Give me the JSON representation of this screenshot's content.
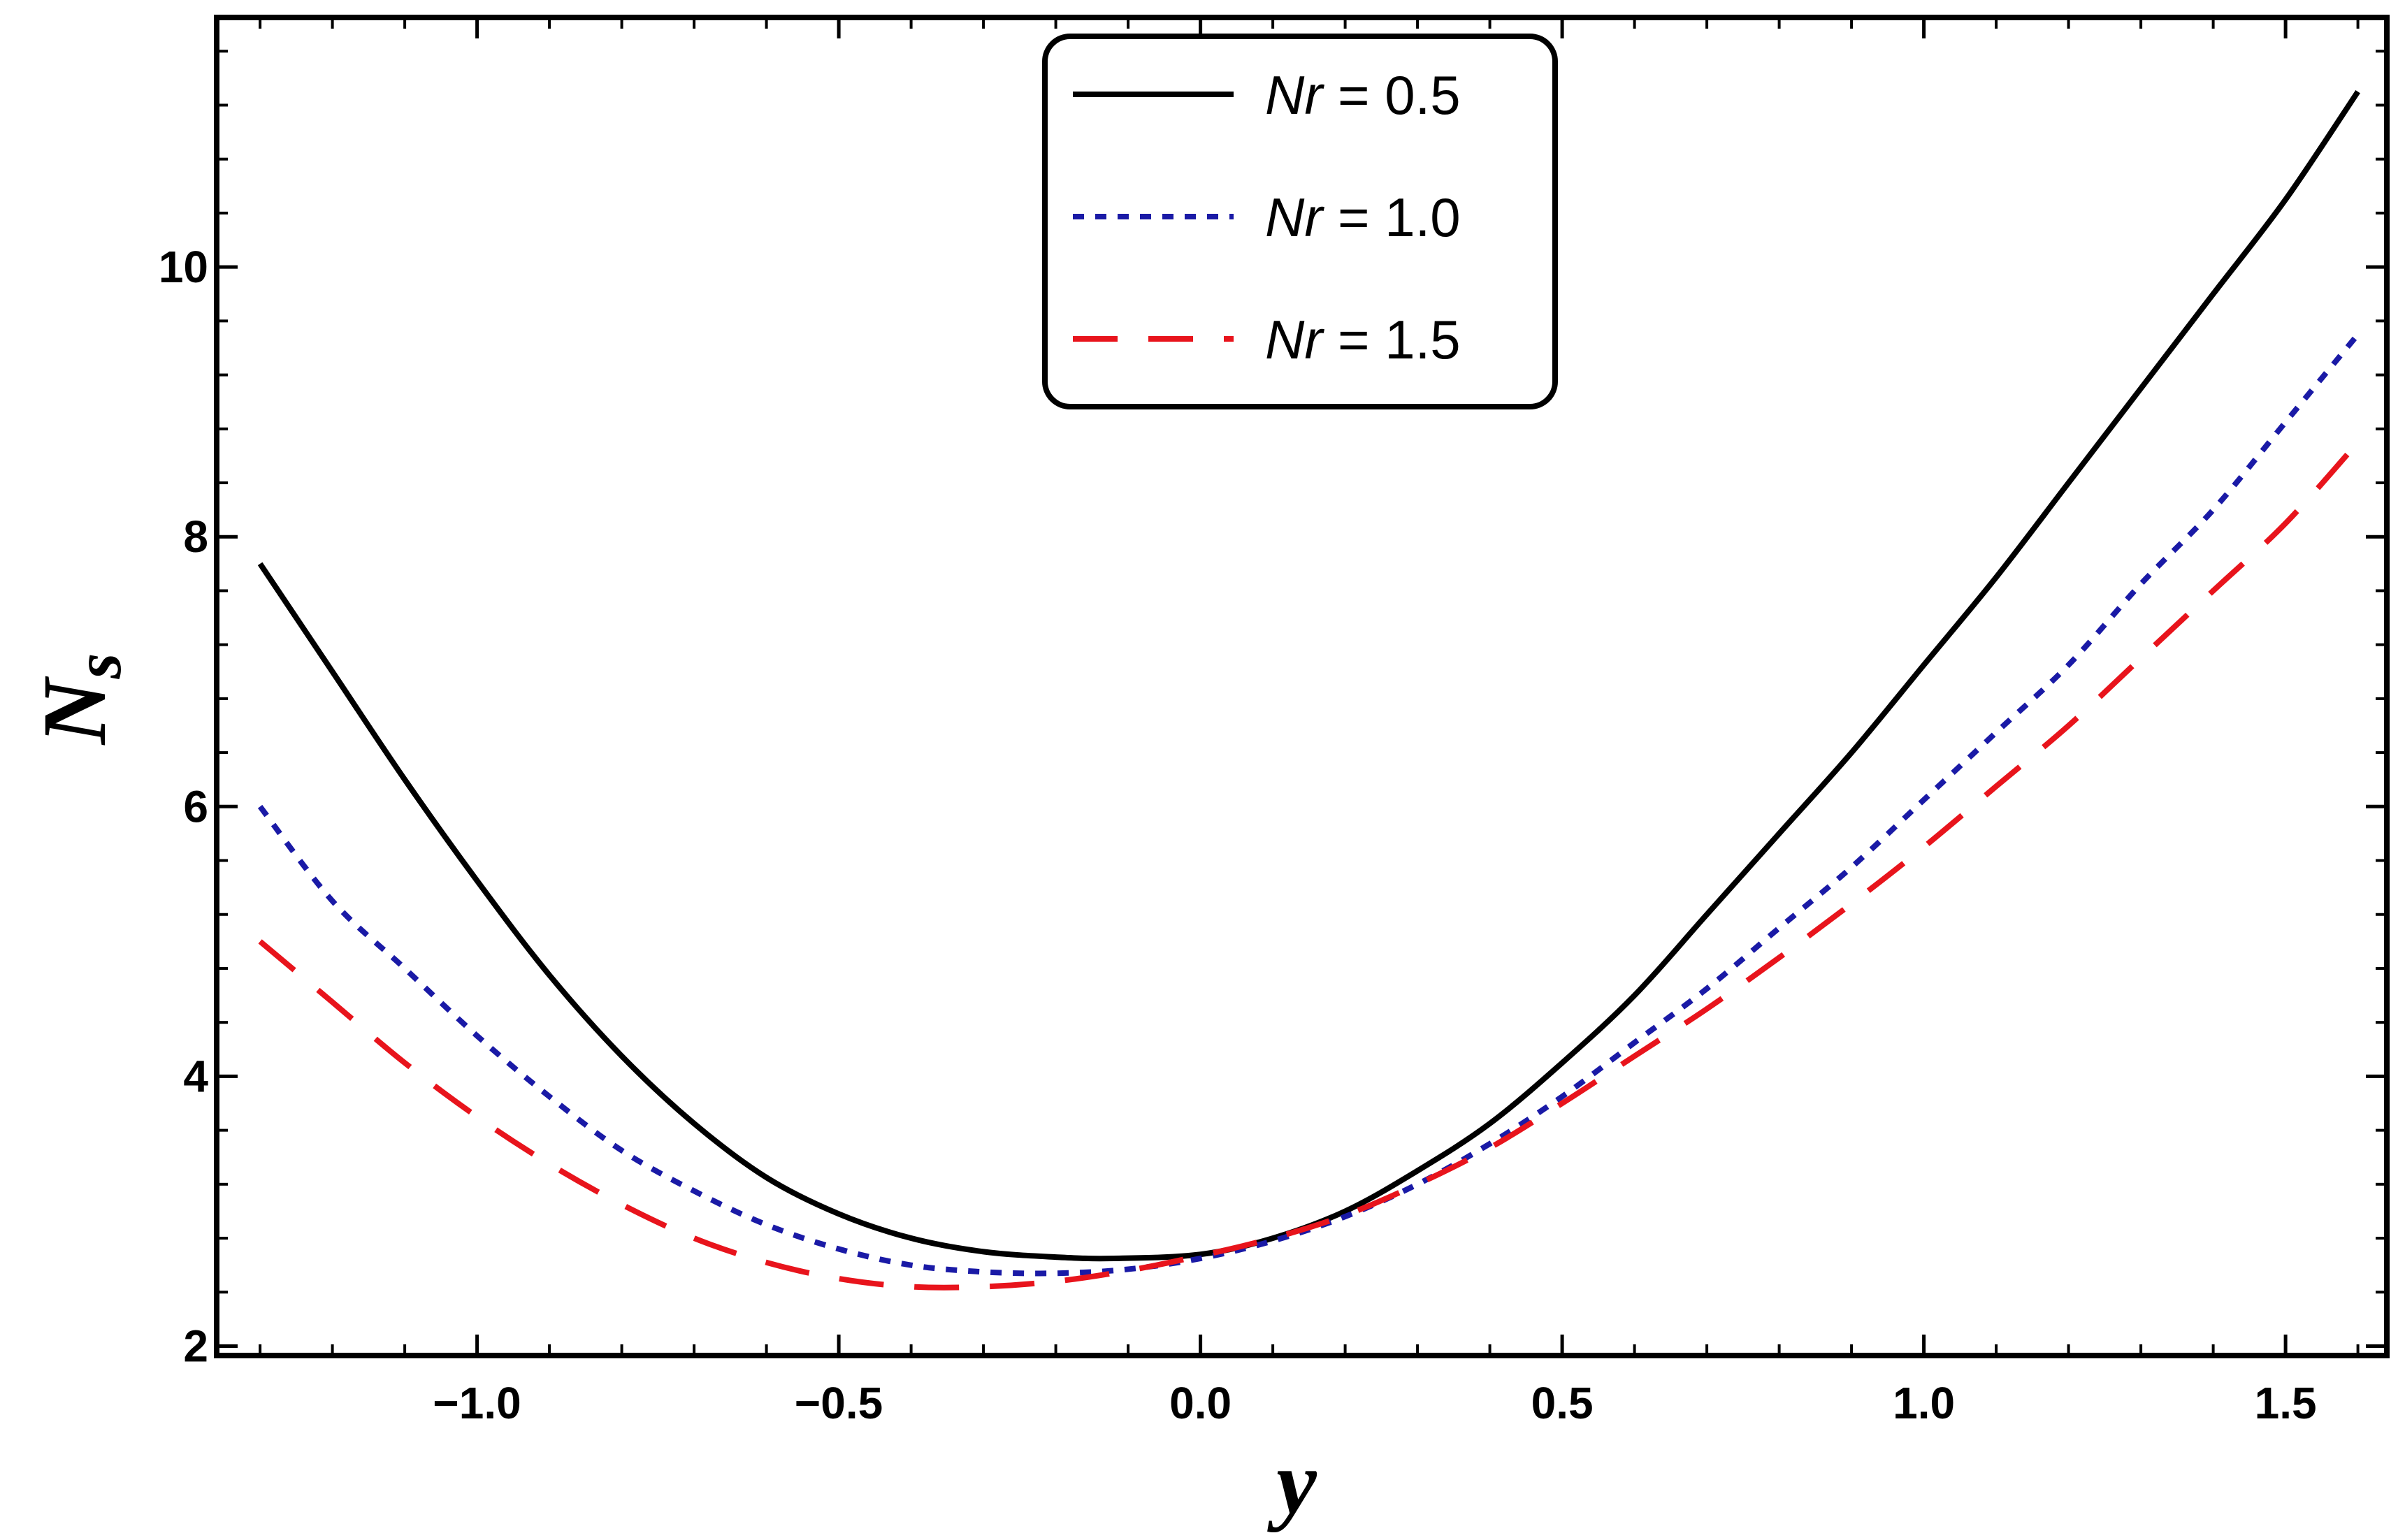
{
  "chart_data": {
    "type": "line",
    "title": "",
    "xlabel": "y",
    "ylabel_main": "N",
    "ylabel_sub": "s",
    "xlim": [
      -1.36,
      1.64
    ],
    "ylim": [
      1.93,
      11.85
    ],
    "xticks": [
      -1.0,
      -0.5,
      0.0,
      0.5,
      1.0,
      1.5
    ],
    "xtick_labels": [
      "−1.0",
      "−0.5",
      "0.0",
      "0.5",
      "1.0",
      "1.5"
    ],
    "yticks": [
      2,
      4,
      6,
      8,
      10
    ],
    "ytick_labels": [
      "2",
      "4",
      "6",
      "8",
      "10"
    ],
    "grid": false,
    "legend_position": "top-center",
    "series": [
      {
        "name": "Nr = 0.5",
        "legend_var": "Nr",
        "legend_value": " = 0.5",
        "color": "#000000",
        "style": "solid",
        "x": [
          -1.3,
          -1.2,
          -1.1,
          -1.0,
          -0.9,
          -0.8,
          -0.7,
          -0.6,
          -0.5,
          -0.4,
          -0.3,
          -0.2,
          -0.12,
          0.0,
          0.1,
          0.2,
          0.3,
          0.4,
          0.5,
          0.6,
          0.7,
          0.8,
          0.9,
          1.0,
          1.1,
          1.2,
          1.3,
          1.4,
          1.5,
          1.6
        ],
        "y": [
          7.8,
          7.0,
          6.2,
          5.45,
          4.75,
          4.15,
          3.65,
          3.25,
          2.98,
          2.8,
          2.7,
          2.66,
          2.65,
          2.68,
          2.8,
          3.0,
          3.3,
          3.65,
          4.1,
          4.6,
          5.2,
          5.8,
          6.4,
          7.05,
          7.7,
          8.4,
          9.1,
          9.8,
          10.5,
          11.3
        ]
      },
      {
        "name": "Nr = 1.0",
        "legend_var": "Nr",
        "legend_value": " = 1.0",
        "color": "#1a1aa6",
        "style": "dotted",
        "x": [
          -1.3,
          -1.2,
          -1.1,
          -1.0,
          -0.9,
          -0.8,
          -0.7,
          -0.6,
          -0.5,
          -0.4,
          -0.3,
          -0.2,
          -0.1,
          0.0,
          0.1,
          0.2,
          0.3,
          0.4,
          0.5,
          0.6,
          0.7,
          0.8,
          0.9,
          1.0,
          1.1,
          1.2,
          1.3,
          1.4,
          1.5,
          1.6
        ],
        "y": [
          6.0,
          5.3,
          4.8,
          4.3,
          3.85,
          3.45,
          3.15,
          2.9,
          2.72,
          2.6,
          2.55,
          2.54,
          2.57,
          2.65,
          2.78,
          2.96,
          3.2,
          3.5,
          3.85,
          4.25,
          4.65,
          5.1,
          5.55,
          6.05,
          6.55,
          7.05,
          7.65,
          8.2,
          8.85,
          9.5
        ]
      },
      {
        "name": "Nr = 1.5",
        "legend_var": "Nr",
        "legend_value": " = 1.5",
        "color": "#e8141c",
        "style": "dashed",
        "x": [
          -1.3,
          -1.2,
          -1.1,
          -1.0,
          -0.9,
          -0.8,
          -0.7,
          -0.6,
          -0.5,
          -0.4,
          -0.3,
          -0.2,
          -0.1,
          0.0,
          0.1,
          0.2,
          0.3,
          0.4,
          0.5,
          0.6,
          0.7,
          0.8,
          0.9,
          1.0,
          1.1,
          1.2,
          1.3,
          1.4,
          1.5,
          1.6
        ],
        "y": [
          5.0,
          4.55,
          4.1,
          3.7,
          3.35,
          3.05,
          2.8,
          2.62,
          2.5,
          2.44,
          2.44,
          2.48,
          2.56,
          2.67,
          2.8,
          2.97,
          3.2,
          3.47,
          3.8,
          4.15,
          4.5,
          4.88,
          5.28,
          5.7,
          6.15,
          6.6,
          7.1,
          7.6,
          8.1,
          8.7
        ]
      }
    ]
  }
}
